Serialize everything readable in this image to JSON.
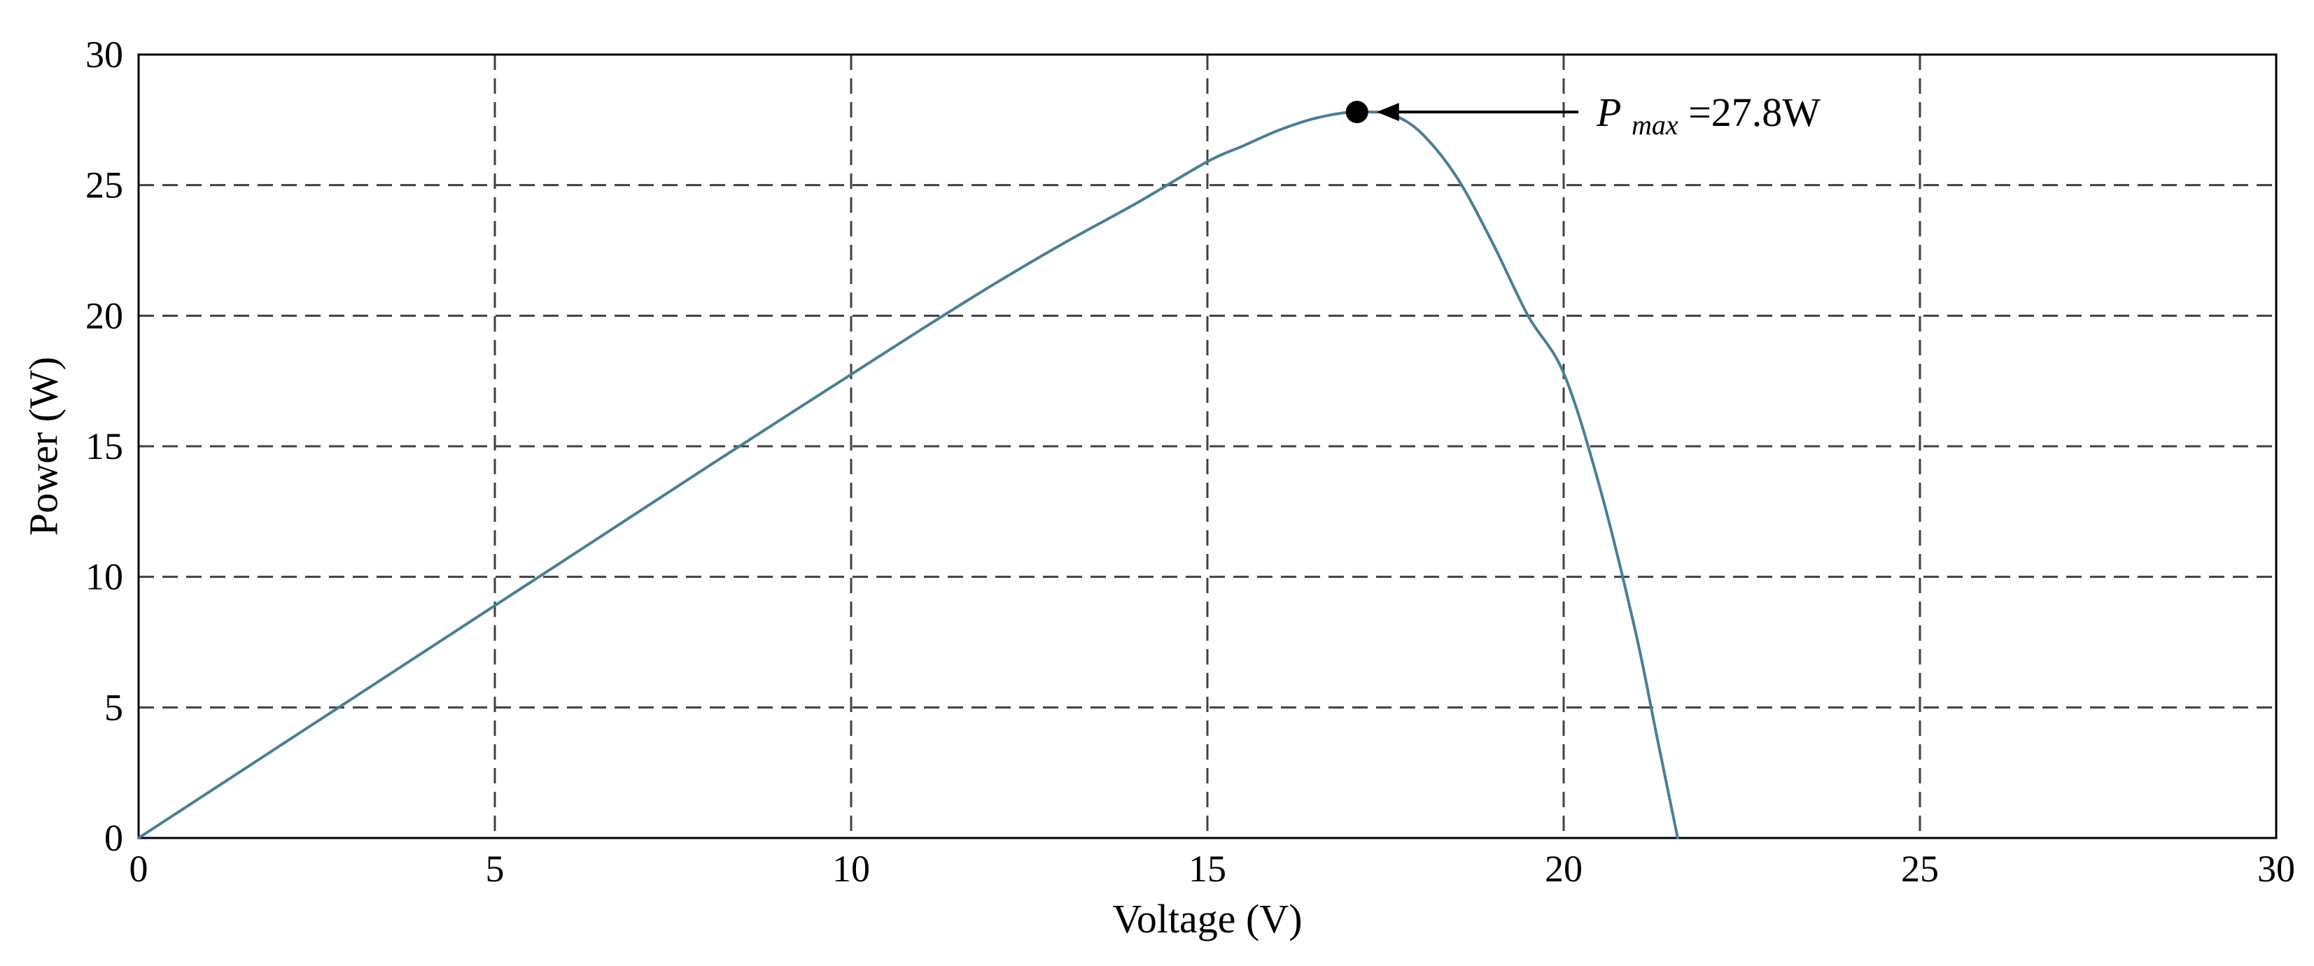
{
  "chart_data": {
    "type": "line",
    "title": "",
    "xlabel": "Voltage (V)",
    "ylabel": "Power (W)",
    "xlim": [
      0,
      30
    ],
    "ylim": [
      0,
      30
    ],
    "xticks": [
      0,
      5,
      10,
      15,
      20,
      25,
      30
    ],
    "yticks": [
      0,
      5,
      10,
      15,
      20,
      25,
      30
    ],
    "grid": true,
    "legend": "none",
    "series": [
      {
        "color": "#4a7f94",
        "x": [
          0,
          1,
          2,
          3,
          4,
          5,
          6,
          7,
          8,
          9,
          10,
          11,
          12,
          13,
          14,
          15,
          15.5,
          16,
          16.5,
          17,
          17.3,
          17.6,
          18,
          18.5,
          19,
          19.5,
          20,
          20.5,
          21,
          21.3,
          21.6
        ],
        "y": [
          0,
          1.78,
          3.56,
          5.34,
          7.12,
          8.9,
          10.68,
          12.46,
          14.24,
          16.0,
          17.75,
          19.5,
          21.2,
          22.8,
          24.3,
          25.9,
          26.5,
          27.1,
          27.55,
          27.8,
          27.8,
          27.7,
          27.0,
          25.3,
          22.8,
          20.0,
          17.8,
          13.5,
          8.0,
          4.0,
          0
        ]
      }
    ],
    "max_point": {
      "x": 17.1,
      "y": 27.8,
      "color": "#000000"
    },
    "annotation": {
      "symbol": "P",
      "subscript": "max",
      "value_text": "=27.8W"
    }
  }
}
